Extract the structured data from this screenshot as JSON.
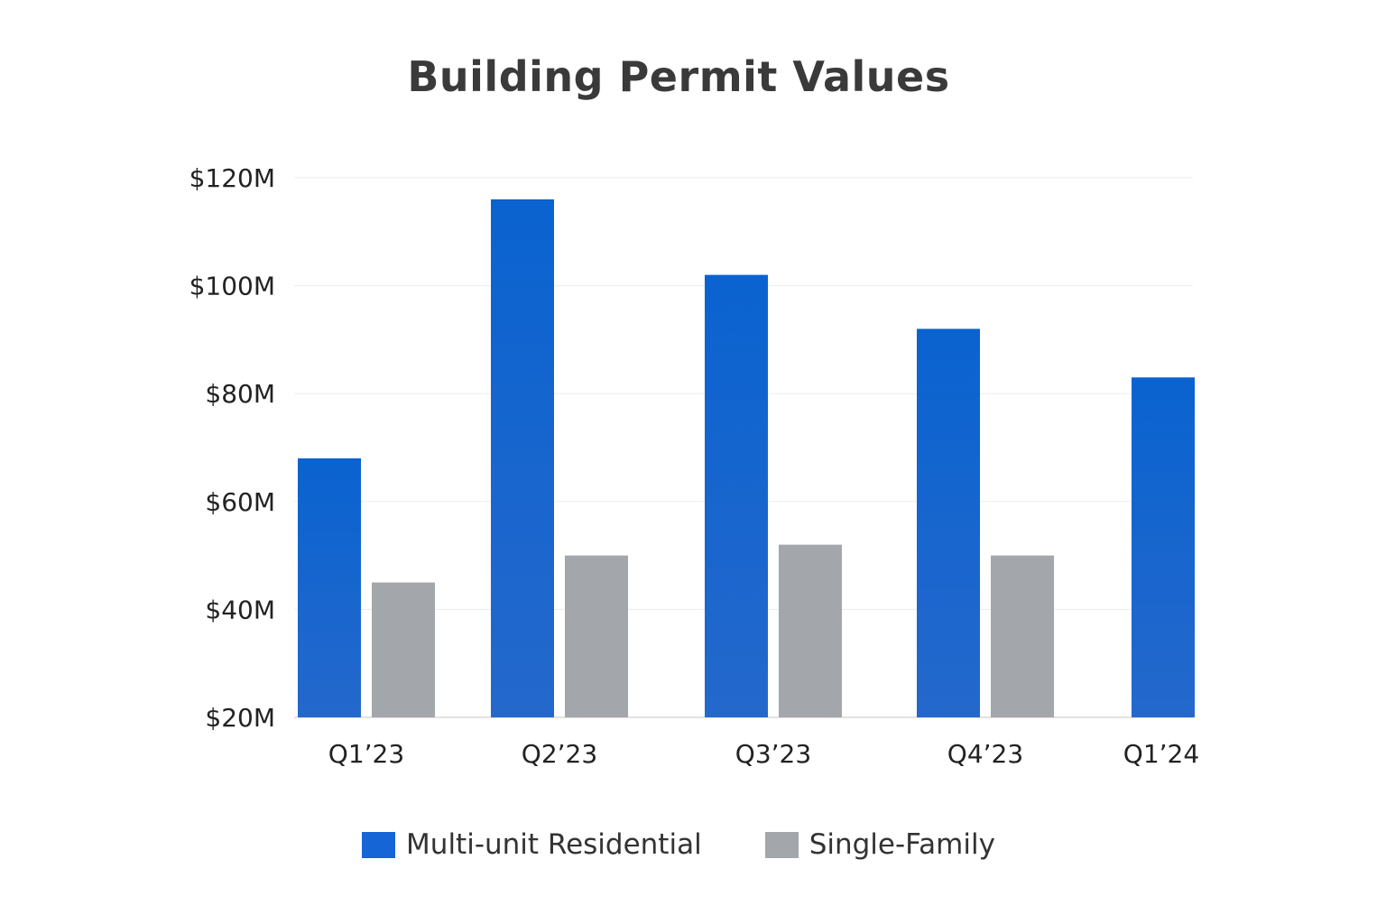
{
  "chart_data": {
    "type": "bar",
    "title": "Building Permit Values",
    "xlabel": "",
    "ylabel": "",
    "categories": [
      "Q1’23",
      "Q2’23",
      "Q3’23",
      "Q4’23",
      "Q1’24"
    ],
    "series": [
      {
        "name": "Multi-unit Residential",
        "color": "#1565d6",
        "values": [
          68,
          116,
          102,
          92,
          83
        ]
      },
      {
        "name": "Single-Family",
        "color": "#a3a7ab",
        "values": [
          45,
          50,
          52,
          50,
          null
        ]
      }
    ],
    "ylim": [
      20,
      120
    ],
    "yticks": [
      20,
      40,
      60,
      80,
      100,
      120
    ],
    "ytick_labels": [
      "$20M",
      "$40M",
      "$60M",
      "$80M",
      "$100M",
      "$120M"
    ],
    "grid": true,
    "legend_position": "bottom-center"
  }
}
